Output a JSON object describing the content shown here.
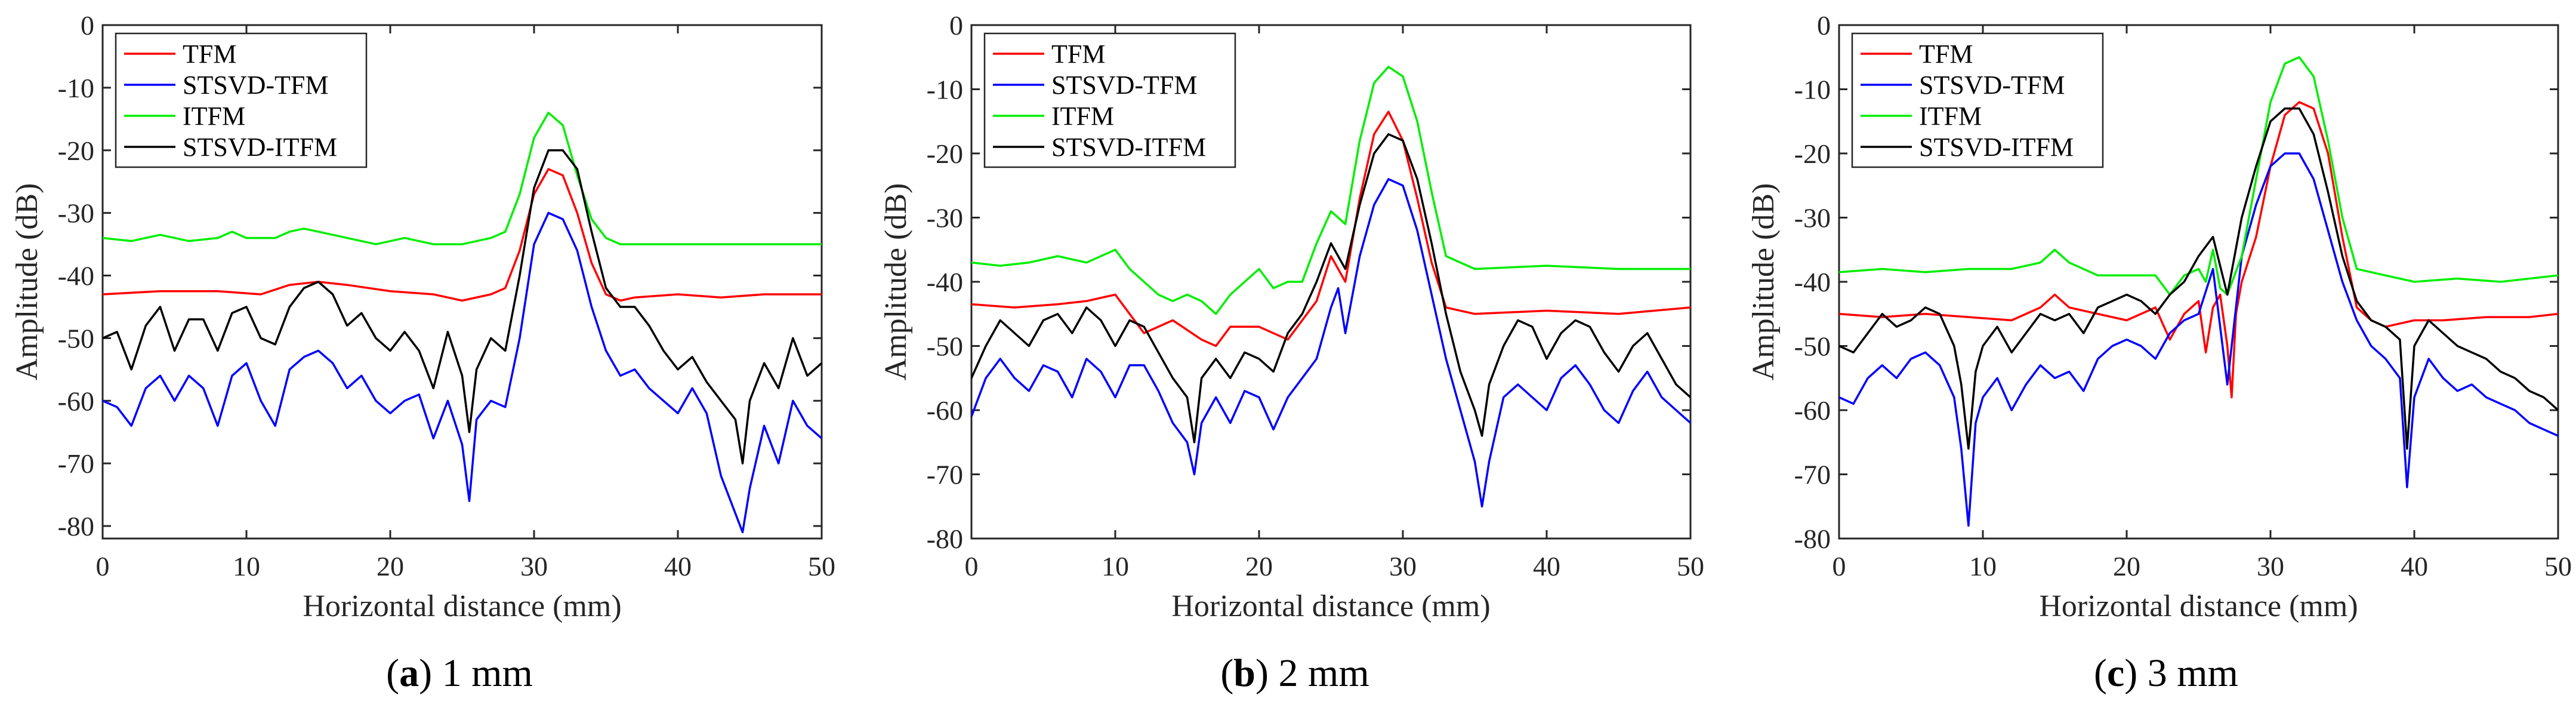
{
  "chart_data": [
    {
      "type": "line",
      "caption_label": "a",
      "caption_text": "1 mm",
      "xlabel": "Horizontal distance (mm)",
      "ylabel": "Amplitude (dB)",
      "xlim": [
        0,
        50
      ],
      "ylim": [
        -82,
        0
      ],
      "xticks": [
        0,
        10,
        20,
        30,
        40,
        50
      ],
      "yticks": [
        0,
        -10,
        -20,
        -30,
        -40,
        -50,
        -60,
        -70,
        -80
      ],
      "legend": "top-left",
      "series": [
        {
          "name": "TFM",
          "color": "#ff0000",
          "x": [
            0,
            4,
            8,
            11,
            13,
            15,
            17,
            20,
            23,
            25,
            27,
            28,
            29,
            30,
            31,
            32,
            33,
            34,
            35,
            36,
            37,
            40,
            43,
            46,
            50
          ],
          "y": [
            -43,
            -42.5,
            -42.5,
            -43,
            -41.5,
            -41,
            -41.5,
            -42.5,
            -43,
            -44,
            -43,
            -42,
            -36,
            -27,
            -23,
            -24,
            -30,
            -38,
            -43,
            -44,
            -43.5,
            -43,
            -43.5,
            -43,
            -43
          ]
        },
        {
          "name": "STSVD-TFM",
          "color": "#0000ff",
          "x": [
            0,
            1,
            2,
            3,
            4,
            5,
            6,
            7,
            8,
            9,
            10,
            11,
            12,
            13,
            14,
            15,
            16,
            17,
            18,
            19,
            20,
            21,
            22,
            23,
            24,
            25,
            25.5,
            26,
            27,
            28,
            29,
            30,
            31,
            32,
            33,
            34,
            35,
            36,
            37,
            38,
            39,
            40,
            41,
            42,
            43,
            44,
            44.5,
            45,
            46,
            47,
            48,
            49,
            50
          ],
          "y": [
            -60,
            -61,
            -64,
            -58,
            -56,
            -60,
            -56,
            -58,
            -64,
            -56,
            -54,
            -60,
            -64,
            -55,
            -53,
            -52,
            -54,
            -58,
            -56,
            -60,
            -62,
            -60,
            -59,
            -66,
            -60,
            -67,
            -76,
            -63,
            -60,
            -61,
            -50,
            -35,
            -30,
            -31,
            -36,
            -45,
            -52,
            -56,
            -55,
            -58,
            -60,
            -62,
            -58,
            -62,
            -72,
            -78,
            -81,
            -74,
            -64,
            -70,
            -60,
            -64,
            -66
          ]
        },
        {
          "name": "ITFM",
          "color": "#00ee00",
          "x": [
            0,
            2,
            4,
            6,
            8,
            9,
            10,
            12,
            13,
            14,
            15,
            17,
            19,
            21,
            23,
            25,
            27,
            28,
            29,
            30,
            31,
            32,
            33,
            34,
            35,
            36,
            38,
            40,
            43,
            46,
            50
          ],
          "y": [
            -34,
            -34.5,
            -33.5,
            -34.5,
            -34,
            -33,
            -34,
            -34,
            -33,
            -32.5,
            -33,
            -34,
            -35,
            -34,
            -35,
            -35,
            -34,
            -33,
            -27,
            -18,
            -14,
            -16,
            -24,
            -31,
            -34,
            -35,
            -35,
            -35,
            -35,
            -35,
            -35
          ]
        },
        {
          "name": "STSVD-ITFM",
          "color": "#000000",
          "x": [
            0,
            1,
            2,
            3,
            4,
            5,
            6,
            7,
            8,
            9,
            10,
            11,
            12,
            13,
            14,
            15,
            16,
            17,
            18,
            19,
            20,
            21,
            22,
            23,
            24,
            25,
            25.5,
            26,
            27,
            28,
            29,
            30,
            31,
            32,
            33,
            34,
            35,
            36,
            37,
            38,
            39,
            40,
            41,
            42,
            43,
            44,
            44.5,
            45,
            46,
            47,
            48,
            49,
            50
          ],
          "y": [
            -50,
            -49,
            -55,
            -48,
            -45,
            -52,
            -47,
            -47,
            -52,
            -46,
            -45,
            -50,
            -51,
            -45,
            -42,
            -41,
            -43,
            -48,
            -46,
            -50,
            -52,
            -49,
            -52,
            -58,
            -49,
            -56,
            -65,
            -55,
            -50,
            -52,
            -40,
            -26,
            -20,
            -20,
            -23,
            -33,
            -42,
            -45,
            -45,
            -48,
            -52,
            -55,
            -53,
            -57,
            -60,
            -63,
            -70,
            -60,
            -54,
            -58,
            -50,
            -56,
            -54
          ]
        }
      ]
    },
    {
      "type": "line",
      "caption_label": "b",
      "caption_text": "2 mm",
      "xlabel": "Horizontal distance (mm)",
      "ylabel": "Amplitude (dB)",
      "xlim": [
        0,
        50
      ],
      "ylim": [
        -80,
        0
      ],
      "xticks": [
        0,
        10,
        20,
        30,
        40,
        50
      ],
      "yticks": [
        0,
        -10,
        -20,
        -30,
        -40,
        -50,
        -60,
        -70,
        -80
      ],
      "legend": "top-left",
      "series": [
        {
          "name": "TFM",
          "color": "#ff0000",
          "x": [
            0,
            3,
            6,
            8,
            10,
            11,
            12,
            14,
            16,
            17,
            18,
            20,
            22,
            24,
            25,
            26,
            27,
            28,
            29,
            30,
            31,
            32,
            33,
            35,
            40,
            45,
            50
          ],
          "y": [
            -43.5,
            -44,
            -43.5,
            -43,
            -42,
            -45,
            -48,
            -46,
            -49,
            -50,
            -47,
            -47,
            -49,
            -43,
            -36,
            -40,
            -27,
            -17,
            -13.5,
            -18,
            -27,
            -37,
            -44,
            -45,
            -44.5,
            -45,
            -44
          ]
        },
        {
          "name": "STSVD-TFM",
          "color": "#0000ff",
          "x": [
            0,
            1,
            2,
            3,
            4,
            5,
            6,
            7,
            8,
            9,
            10,
            11,
            12,
            13,
            14,
            15,
            15.5,
            16,
            17,
            18,
            19,
            20,
            21,
            22,
            23,
            24,
            25,
            25.5,
            26,
            27,
            28,
            29,
            30,
            31,
            32,
            33,
            34,
            35,
            35.5,
            36,
            37,
            38,
            39,
            40,
            41,
            42,
            43,
            44,
            45,
            46,
            47,
            48,
            49,
            50
          ],
          "y": [
            -61,
            -55,
            -52,
            -55,
            -57,
            -53,
            -54,
            -58,
            -52,
            -54,
            -58,
            -53,
            -53,
            -57,
            -62,
            -65,
            -70,
            -62,
            -58,
            -62,
            -57,
            -58,
            -63,
            -58,
            -55,
            -52,
            -44,
            -41,
            -48,
            -36,
            -28,
            -24,
            -25,
            -32,
            -42,
            -52,
            -60,
            -68,
            -75,
            -68,
            -58,
            -56,
            -58,
            -60,
            -55,
            -53,
            -56,
            -60,
            -62,
            -57,
            -54,
            -58,
            -60,
            -62
          ]
        },
        {
          "name": "ITFM",
          "color": "#00ee00",
          "x": [
            0,
            2,
            4,
            6,
            8,
            10,
            11,
            12,
            13,
            14,
            15,
            16,
            17,
            18,
            19,
            20,
            21,
            22,
            23,
            24,
            25,
            26,
            27,
            28,
            29,
            30,
            31,
            32,
            33,
            35,
            40,
            45,
            50
          ],
          "y": [
            -37,
            -37.5,
            -37,
            -36,
            -37,
            -35,
            -38,
            -40,
            -42,
            -43,
            -42,
            -43,
            -45,
            -42,
            -40,
            -38,
            -41,
            -40,
            -40,
            -34,
            -29,
            -31,
            -18,
            -9,
            -6.5,
            -8,
            -15,
            -26,
            -36,
            -38,
            -37.5,
            -38,
            -38
          ]
        },
        {
          "name": "STSVD-ITFM",
          "color": "#000000",
          "x": [
            0,
            1,
            2,
            3,
            4,
            5,
            6,
            7,
            8,
            9,
            10,
            11,
            12,
            13,
            14,
            15,
            15.5,
            16,
            17,
            18,
            19,
            20,
            21,
            22,
            23,
            24,
            25,
            26,
            27,
            28,
            29,
            30,
            31,
            32,
            33,
            34,
            35,
            35.5,
            36,
            37,
            38,
            39,
            40,
            41,
            42,
            43,
            44,
            45,
            46,
            47,
            48,
            49,
            50
          ],
          "y": [
            -55,
            -50,
            -46,
            -48,
            -50,
            -46,
            -45,
            -48,
            -44,
            -46,
            -50,
            -46,
            -47,
            -51,
            -55,
            -58,
            -65,
            -55,
            -52,
            -55,
            -51,
            -52,
            -54,
            -48,
            -45,
            -40,
            -34,
            -38,
            -28,
            -20,
            -17,
            -18,
            -24,
            -34,
            -45,
            -54,
            -60,
            -64,
            -56,
            -50,
            -46,
            -47,
            -52,
            -48,
            -46,
            -47,
            -51,
            -54,
            -50,
            -48,
            -52,
            -56,
            -58
          ]
        }
      ]
    },
    {
      "type": "line",
      "caption_label": "c",
      "caption_text": "3 mm",
      "xlabel": "Horizontal distance (mm)",
      "ylabel": "Amplitude (dB)",
      "xlim": [
        0,
        50
      ],
      "ylim": [
        -80,
        0
      ],
      "xticks": [
        0,
        10,
        20,
        30,
        40,
        50
      ],
      "yticks": [
        0,
        -10,
        -20,
        -30,
        -40,
        -50,
        -60,
        -70,
        -80
      ],
      "legend": "top-left",
      "series": [
        {
          "name": "TFM",
          "color": "#ff0000",
          "x": [
            0,
            3,
            6,
            9,
            12,
            14,
            15,
            16,
            18,
            20,
            22,
            23,
            24,
            25,
            25.5,
            26,
            26.5,
            27,
            27.3,
            27.6,
            28,
            29,
            30,
            31,
            32,
            33,
            34,
            35,
            36,
            37,
            38,
            40,
            42,
            45,
            48,
            50
          ],
          "y": [
            -45,
            -45.5,
            -45,
            -45.5,
            -46,
            -44,
            -42,
            -44,
            -45,
            -46,
            -44,
            -49,
            -45,
            -43,
            -51,
            -44,
            -42,
            -50,
            -58,
            -45,
            -40,
            -33,
            -22,
            -14,
            -12,
            -13,
            -20,
            -33,
            -44,
            -46,
            -47,
            -46,
            -46,
            -45.5,
            -45.5,
            -45
          ]
        },
        {
          "name": "STSVD-TFM",
          "color": "#0000ff",
          "x": [
            0,
            1,
            2,
            3,
            4,
            5,
            6,
            7,
            8,
            8.5,
            9,
            9.5,
            10,
            11,
            12,
            13,
            14,
            15,
            16,
            17,
            18,
            19,
            20,
            21,
            22,
            23,
            24,
            25,
            26,
            27,
            28,
            29,
            30,
            31,
            32,
            33,
            34,
            35,
            36,
            37,
            38,
            39,
            39.5,
            40,
            41,
            42,
            43,
            44,
            45,
            46,
            47,
            48,
            49,
            50
          ],
          "y": [
            -58,
            -59,
            -55,
            -53,
            -55,
            -52,
            -51,
            -53,
            -58,
            -66,
            -78,
            -62,
            -58,
            -55,
            -60,
            -56,
            -53,
            -55,
            -54,
            -57,
            -52,
            -50,
            -49,
            -50,
            -52,
            -48,
            -46,
            -45,
            -38,
            -56,
            -36,
            -28,
            -22,
            -20,
            -20,
            -24,
            -32,
            -40,
            -46,
            -50,
            -52,
            -55,
            -72,
            -58,
            -52,
            -55,
            -57,
            -56,
            -58,
            -59,
            -60,
            -62,
            -63,
            -64
          ]
        },
        {
          "name": "ITFM",
          "color": "#00ee00",
          "x": [
            0,
            3,
            6,
            9,
            12,
            14,
            15,
            16,
            18,
            20,
            22,
            23,
            24,
            25,
            25.5,
            26,
            26.5,
            27,
            28,
            29,
            30,
            31,
            32,
            33,
            34,
            35,
            36,
            38,
            40,
            43,
            46,
            50
          ],
          "y": [
            -38.5,
            -38,
            -38.5,
            -38,
            -38,
            -37,
            -35,
            -37,
            -39,
            -39,
            -39,
            -42,
            -39,
            -38,
            -40,
            -35,
            -41,
            -42,
            -36,
            -24,
            -12,
            -6,
            -5,
            -8,
            -18,
            -30,
            -38,
            -39,
            -40,
            -39.5,
            -40,
            -39
          ]
        },
        {
          "name": "STSVD-ITFM",
          "color": "#000000",
          "x": [
            0,
            1,
            2,
            3,
            4,
            5,
            6,
            7,
            8,
            8.5,
            9,
            9.5,
            10,
            11,
            12,
            13,
            14,
            15,
            16,
            17,
            18,
            19,
            20,
            21,
            22,
            23,
            24,
            25,
            26,
            27,
            28,
            29,
            30,
            31,
            32,
            33,
            34,
            35,
            36,
            37,
            38,
            39,
            39.5,
            40,
            41,
            42,
            43,
            44,
            45,
            46,
            47,
            48,
            49,
            50
          ],
          "y": [
            -50,
            -51,
            -48,
            -45,
            -47,
            -46,
            -44,
            -45,
            -50,
            -56,
            -66,
            -54,
            -50,
            -47,
            -51,
            -48,
            -45,
            -46,
            -45,
            -48,
            -44,
            -43,
            -42,
            -43,
            -45,
            -42,
            -40,
            -36,
            -33,
            -42,
            -30,
            -22,
            -15,
            -13,
            -13,
            -17,
            -26,
            -36,
            -43,
            -46,
            -47,
            -49,
            -66,
            -50,
            -46,
            -48,
            -50,
            -51,
            -52,
            -54,
            -55,
            -57,
            -58,
            -60
          ]
        }
      ]
    }
  ]
}
